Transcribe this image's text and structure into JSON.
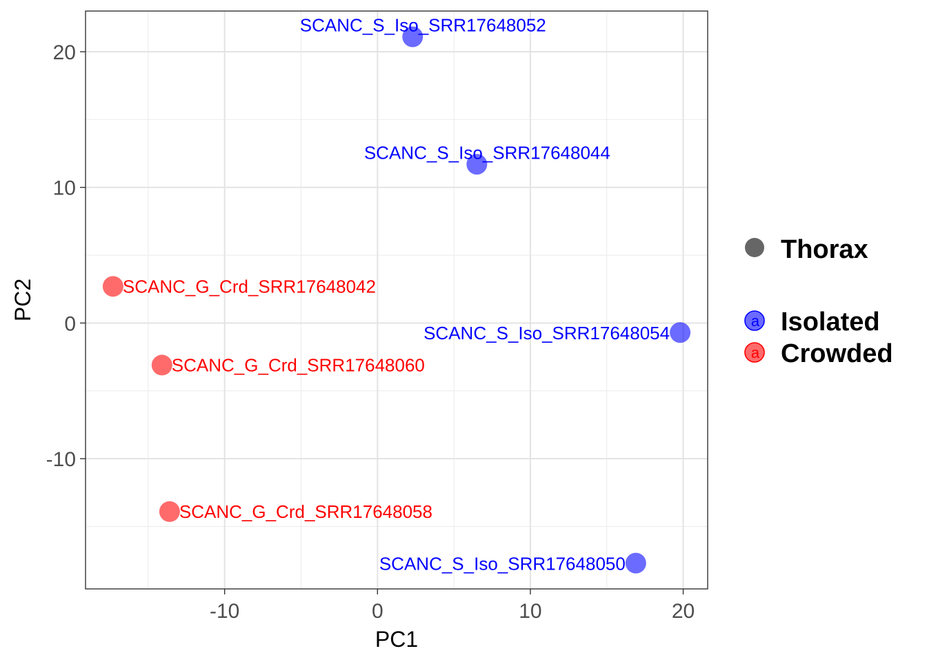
{
  "chart_data": {
    "type": "scatter",
    "xlabel": "PC1",
    "ylabel": "PC2",
    "xlim": [
      -19.1,
      21.6
    ],
    "ylim": [
      -19.6,
      23.0
    ],
    "x_ticks": [
      -10,
      0,
      10,
      20
    ],
    "y_ticks": [
      -10,
      0,
      10,
      20
    ],
    "x_tick_labels": [
      "-10",
      "0",
      "10",
      "20"
    ],
    "y_tick_labels": [
      "-10",
      "0",
      "10",
      "20"
    ],
    "grid": true,
    "legend_position": "right",
    "shape_legend": {
      "label": "Thorax",
      "color": "#666666"
    },
    "groups": [
      {
        "name": "Isolated",
        "color": "#0000ff",
        "key_glyph": "a"
      },
      {
        "name": "Crowded",
        "color": "#ff0000",
        "key_glyph": "a"
      }
    ],
    "points": [
      {
        "label": "SCANC_S_Iso_SRR17648052",
        "x": 2.3,
        "y": 21.1,
        "group": "Isolated"
      },
      {
        "label": "SCANC_S_Iso_SRR17648044",
        "x": 6.5,
        "y": 11.7,
        "group": "Isolated"
      },
      {
        "label": "SCANC_G_Crd_SRR17648042",
        "x": -17.3,
        "y": 2.7,
        "group": "Crowded"
      },
      {
        "label": "SCANC_S_Iso_SRR17648054",
        "x": 19.8,
        "y": -0.7,
        "group": "Isolated"
      },
      {
        "label": "SCANC_G_Crd_SRR17648060",
        "x": -14.1,
        "y": -3.1,
        "group": "Crowded"
      },
      {
        "label": "SCANC_G_Crd_SRR17648058",
        "x": -13.6,
        "y": -13.9,
        "group": "Crowded"
      },
      {
        "label": "SCANC_S_Iso_SRR17648050",
        "x": 16.9,
        "y": -17.7,
        "group": "Isolated"
      }
    ]
  }
}
